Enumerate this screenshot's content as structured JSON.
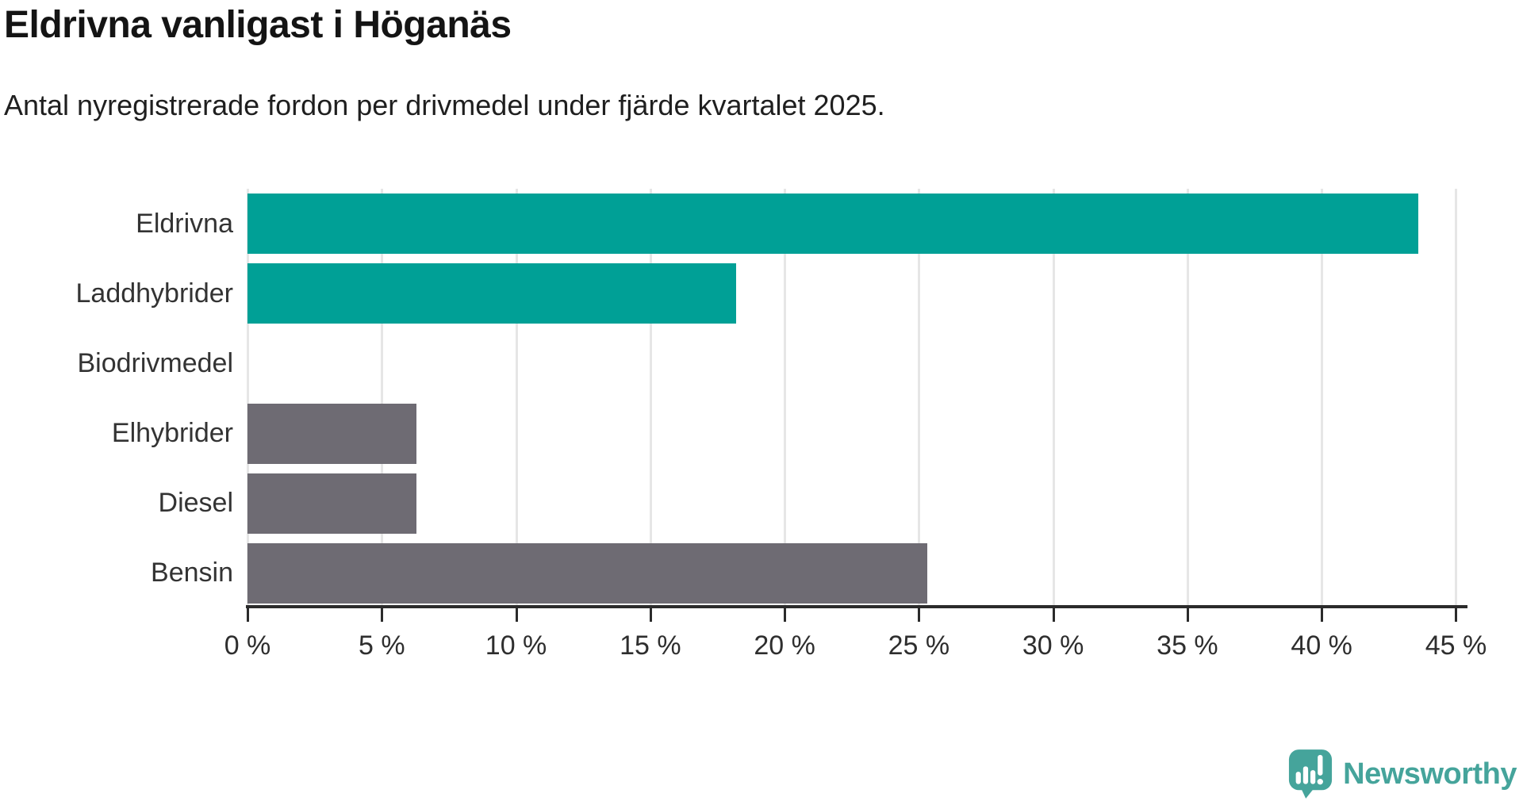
{
  "title": "Eldrivna vanligast i Höganäs",
  "subtitle": "Antal nyregistrerade fordon per drivmedel under fjärde kvartalet 2025.",
  "chart_data": {
    "type": "bar",
    "orientation": "horizontal",
    "categories": [
      "Eldrivna",
      "Laddhybrider",
      "Biodrivmedel",
      "Elhybrider",
      "Diesel",
      "Bensin"
    ],
    "values": [
      43.6,
      18.2,
      0,
      6.3,
      6.3,
      25.3
    ],
    "unit": "%",
    "bar_colors": [
      "#00a096",
      "#00a096",
      "#00a096",
      "#6e6b73",
      "#6e6b73",
      "#6e6b73"
    ],
    "highlight_color": "#00a096",
    "muted_color": "#6e6b73",
    "title": "Eldrivna vanligast i Höganäs",
    "xlabel": "",
    "ylabel": "",
    "xlim": [
      0,
      45.4
    ],
    "x_ticks": [
      0,
      5,
      10,
      15,
      20,
      25,
      30,
      35,
      40,
      45
    ],
    "x_tick_labels": [
      "0 %",
      "5 %",
      "10 %",
      "15 %",
      "20 %",
      "25 %",
      "30 %",
      "35 %",
      "40 %",
      "45 %"
    ],
    "grid": "vertical-gridlines-on",
    "gridline_color": "#e6e6e6",
    "axis_color": "#2b2b2b",
    "legend": "none"
  },
  "branding": {
    "logo_text": "Newsworthy",
    "logo_color": "#45a49b",
    "logo_icon": "newsworthy-speech-bubble-bar-chart-icon"
  }
}
